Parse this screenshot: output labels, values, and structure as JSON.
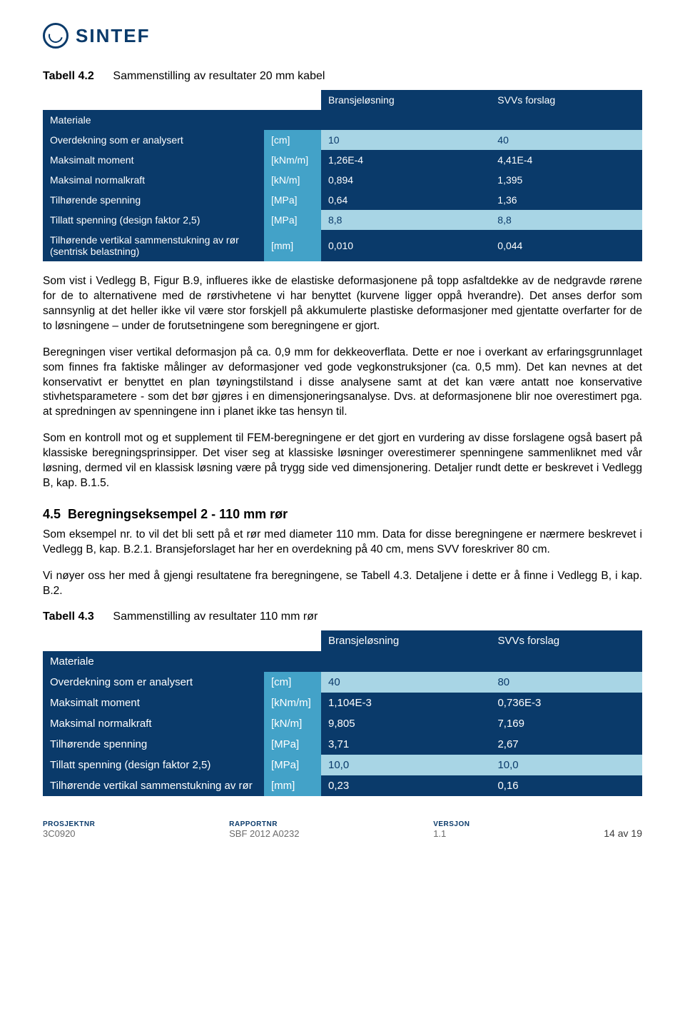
{
  "brand": {
    "name": "SINTEF",
    "logo_color": "#0a3a6a"
  },
  "caption1": {
    "label": "Tabell 4.2",
    "title": "Sammenstilling av resultater 20 mm kabel"
  },
  "table1": {
    "columns": {
      "c1": "Bransjeløsning",
      "c2": "SVVs forslag"
    },
    "material": "Materiale",
    "rows": [
      {
        "label": "Overdekning som er analysert",
        "unit": "[cm]",
        "v1": "10",
        "v2": "40",
        "light": true
      },
      {
        "label": "Maksimalt moment",
        "unit": "[kNm/m]",
        "v1": "1,26E-4",
        "v2": "4,41E-4",
        "light": false
      },
      {
        "label": "Maksimal normalkraft",
        "unit": "[kN/m]",
        "v1": "0,894",
        "v2": "1,395",
        "light": false
      },
      {
        "label": "Tilhørende spenning",
        "unit": "[MPa]",
        "v1": "0,64",
        "v2": "1,36",
        "light": false
      },
      {
        "label": "Tillatt spenning (design faktor 2,5)",
        "unit": "[MPa]",
        "v1": "8,8",
        "v2": "8,8",
        "light": true
      },
      {
        "label": "Tilhørende vertikal sammenstukning av rør (sentrisk belastning)",
        "unit": "[mm]",
        "v1": "0,010",
        "v2": "0,044",
        "light": false
      }
    ],
    "colors": {
      "dark": "#0a3a6a",
      "mid": "#43a2c8",
      "light": "#a8d5e5",
      "text_on_light": "#0a3a6a"
    }
  },
  "para1": "Som vist i Vedlegg B, Figur B.9, influeres ikke de elastiske deformasjonene på topp asfaltdekke av de nedgravde rørene for de to alternativene med de rørstivhetene vi har benyttet (kurvene ligger oppå hverandre). Det anses derfor som sannsynlig at det heller ikke vil være stor forskjell på akkumulerte plastiske deformasjoner med gjentatte overfarter for de to løsningene – under de forutsetningene som beregningene er gjort.",
  "para2": "Beregningen viser vertikal deformasjon på ca. 0,9 mm for dekkeoverflata. Dette er noe i overkant av erfaringsgrunnlaget som finnes fra faktiske målinger av deformasjoner ved gode vegkonstruksjoner (ca. 0,5 mm). Det kan nevnes at det konservativt er benyttet en plan tøyningstilstand i disse analysene samt at det kan være antatt noe konservative stivhetsparametere - som det bør gjøres i en dimensjoneringsanalyse. Dvs. at deformasjonene blir noe overestimert pga. at spredningen av spenningene inn i planet ikke tas hensyn til.",
  "para3": "Som en kontroll mot og et supplement til FEM-beregningene er det gjort en vurdering av disse forslagene også basert på klassiske beregningsprinsipper. Det viser seg at klassiske løsninger overestimerer spenningene sammenliknet med vår løsning, dermed vil en klassisk løsning være på trygg side ved dimensjonering. Detaljer rundt dette er beskrevet i Vedlegg B, kap. B.1.5.",
  "section": {
    "num": "4.5",
    "title": "Beregningseksempel 2 - 110 mm rør"
  },
  "para4": "Som eksempel nr. to vil det bli sett på et rør med diameter 110 mm. Data for disse beregningene er nærmere beskrevet i Vedlegg B, kap. B.2.1. Bransjeforslaget har her en overdekning på 40 cm, mens SVV foreskriver 80 cm.",
  "para5": "Vi nøyer oss her med å gjengi resultatene fra beregningene, se Tabell 4.3. Detaljene i dette er å finne i Vedlegg B, i kap. B.2.",
  "caption2": {
    "label": "Tabell 4.3",
    "title": "Sammenstilling av resultater 110 mm rør"
  },
  "table2": {
    "columns": {
      "c1": "Bransjeløsning",
      "c2": "SVVs forslag"
    },
    "material": "Materiale",
    "rows": [
      {
        "label": "Overdekning som er analysert",
        "unit": "[cm]",
        "v1": "40",
        "v2": "80",
        "light": true
      },
      {
        "label": "Maksimalt moment",
        "unit": "[kNm/m]",
        "v1": "1,104E-3",
        "v2": "0,736E-3",
        "light": false
      },
      {
        "label": "Maksimal normalkraft",
        "unit": "[kN/m]",
        "v1": "9,805",
        "v2": "7,169",
        "light": false
      },
      {
        "label": "Tilhørende spenning",
        "unit": "[MPa]",
        "v1": "3,71",
        "v2": "2,67",
        "light": false
      },
      {
        "label": "Tillatt spenning (design faktor 2,5)",
        "unit": "[MPa]",
        "v1": "10,0",
        "v2": "10,0",
        "light": true
      },
      {
        "label": "Tilhørende vertikal sammenstukning av rør",
        "unit": "[mm]",
        "v1": "0,23",
        "v2": "0,16",
        "light": false
      }
    ]
  },
  "footer": {
    "c1l": "PROSJEKTNR",
    "c1v": "3C0920",
    "c2l": "RAPPORTNR",
    "c2v": "SBF 2012 A0232",
    "c3l": "VERSJON",
    "c3v": "1.1",
    "page": "14 av 19"
  }
}
